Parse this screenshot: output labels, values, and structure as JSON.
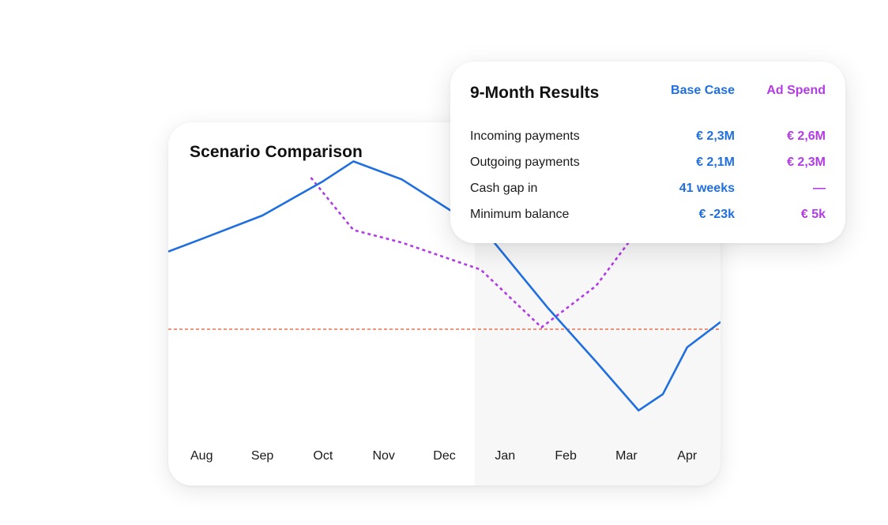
{
  "chart": {
    "title": "Scenario Comparison"
  },
  "results": {
    "title": "9-Month Results",
    "columns": [
      "Base Case",
      "Ad Spend"
    ],
    "rows": [
      {
        "label": "Incoming payments",
        "base": "€ 2,3M",
        "ad": "€ 2,6M"
      },
      {
        "label": "Outgoing payments",
        "base": "€ 2,1M",
        "ad": "€ 2,3M"
      },
      {
        "label": "Cash gap in",
        "base": "41 weeks",
        "ad": "—"
      },
      {
        "label": "Minimum balance",
        "base": "€ -23k",
        "ad": "€ 5k"
      }
    ]
  },
  "colors": {
    "base": "#1f6fe0",
    "ad": "#b23be6",
    "threshold": "#e8542a",
    "forecast_shade": "#f7f7f7"
  },
  "chart_data": {
    "type": "line",
    "title": "Scenario Comparison",
    "categories": [
      "Aug",
      "Sep",
      "Oct",
      "Nov",
      "Dec",
      "Jan",
      "Feb",
      "Mar",
      "Apr"
    ],
    "x_range": [
      -0.55,
      8.55
    ],
    "ylim": [
      -60,
      80
    ],
    "grid": false,
    "legend": "none",
    "shaded_region_from_category": "Jan",
    "series": [
      {
        "name": "Base Case",
        "style": "solid",
        "color": "#1f6fe0",
        "points": [
          [
            -0.55,
            39
          ],
          [
            0.0,
            46
          ],
          [
            1.0,
            59
          ],
          [
            2.0,
            78
          ],
          [
            2.5,
            89
          ],
          [
            3.3,
            79
          ],
          [
            4.7,
            49
          ],
          [
            5.7,
            8
          ],
          [
            6.5,
            -22
          ],
          [
            7.2,
            -49
          ],
          [
            7.6,
            -40
          ],
          [
            8.0,
            -14
          ],
          [
            8.55,
            0
          ]
        ]
      },
      {
        "name": "Ad Spend",
        "style": "dotted",
        "color": "#b23be6",
        "points": [
          [
            1.8,
            80
          ],
          [
            2.5,
            51
          ],
          [
            3.3,
            44
          ],
          [
            4.6,
            29
          ],
          [
            5.6,
            -3
          ],
          [
            6.5,
            20
          ],
          [
            7.3,
            56
          ],
          [
            8.0,
            61
          ],
          [
            8.55,
            72
          ]
        ]
      }
    ],
    "reference_line": {
      "y": -4,
      "style": "dashed",
      "color": "#e8542a"
    }
  }
}
